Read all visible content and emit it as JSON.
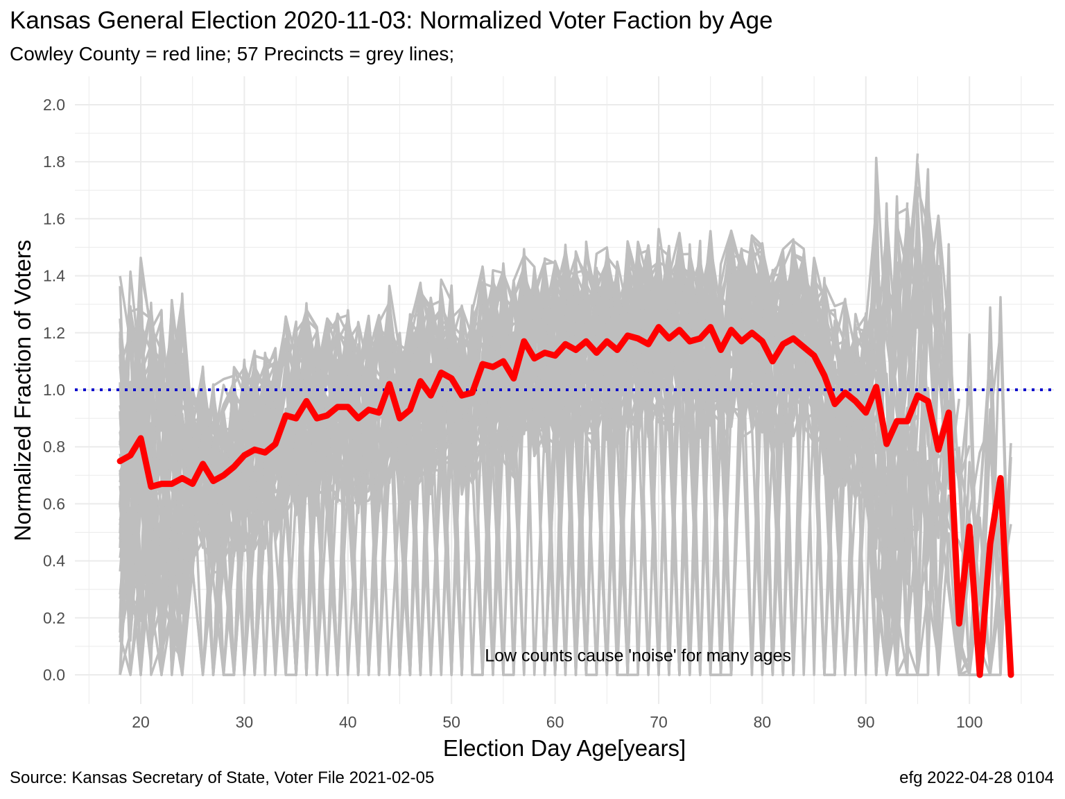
{
  "chart_data": {
    "type": "line",
    "title": "Kansas General Election 2020-11-03:  Normalized Voter Faction by Age",
    "subtitle": "Cowley County = red line; 57 Precincts = grey lines;",
    "xlabel": "Election Day Age[years]",
    "ylabel": "Normalized Fraction of Voters",
    "xlim": [
      15,
      107
    ],
    "ylim": [
      -0.1,
      2.1
    ],
    "x_ticks": [
      20,
      30,
      40,
      50,
      60,
      70,
      80,
      90,
      100
    ],
    "y_ticks": [
      "0.0",
      "0.2",
      "0.4",
      "0.6",
      "0.8",
      "1.0",
      "1.2",
      "1.4",
      "1.6",
      "1.8",
      "2.0"
    ],
    "grid": true,
    "reference_line": {
      "y": 1.0,
      "style": "dotted",
      "color": "#0000cc"
    },
    "annotation": {
      "text": "Low counts cause 'noise' for many ages",
      "x": 68,
      "y": 0.06
    },
    "colors": {
      "county": "#ff0000",
      "precincts": "#bebebe",
      "reference": "#0000cc",
      "grid": "#ebebeb"
    },
    "precinct_line_count": 57,
    "series": [
      {
        "name": "Cowley County",
        "x": [
          18,
          19,
          20,
          21,
          22,
          23,
          24,
          25,
          26,
          27,
          28,
          29,
          30,
          31,
          32,
          33,
          34,
          35,
          36,
          37,
          38,
          39,
          40,
          41,
          42,
          43,
          44,
          45,
          46,
          47,
          48,
          49,
          50,
          51,
          52,
          53,
          54,
          55,
          56,
          57,
          58,
          59,
          60,
          61,
          62,
          63,
          64,
          65,
          66,
          67,
          68,
          69,
          70,
          71,
          72,
          73,
          74,
          75,
          76,
          77,
          78,
          79,
          80,
          81,
          82,
          83,
          84,
          85,
          86,
          87,
          88,
          89,
          90,
          91,
          92,
          93,
          94,
          95,
          96,
          97,
          98,
          99,
          100,
          101,
          102,
          103,
          104
        ],
        "values": [
          0.75,
          0.77,
          0.83,
          0.66,
          0.67,
          0.67,
          0.69,
          0.67,
          0.74,
          0.68,
          0.7,
          0.73,
          0.77,
          0.79,
          0.78,
          0.81,
          0.91,
          0.9,
          0.96,
          0.9,
          0.91,
          0.94,
          0.94,
          0.9,
          0.93,
          0.92,
          1.02,
          0.9,
          0.93,
          1.03,
          0.98,
          1.06,
          1.04,
          0.98,
          0.99,
          1.09,
          1.08,
          1.1,
          1.04,
          1.17,
          1.11,
          1.13,
          1.12,
          1.16,
          1.14,
          1.17,
          1.13,
          1.17,
          1.14,
          1.19,
          1.18,
          1.16,
          1.22,
          1.18,
          1.21,
          1.17,
          1.18,
          1.22,
          1.14,
          1.21,
          1.17,
          1.2,
          1.17,
          1.1,
          1.16,
          1.18,
          1.15,
          1.12,
          1.05,
          0.95,
          0.99,
          0.96,
          0.92,
          1.01,
          0.81,
          0.89,
          0.89,
          0.98,
          0.96,
          0.79,
          0.92,
          0.18,
          0.52,
          0.0,
          0.46,
          0.69,
          0.0
        ]
      }
    ]
  },
  "captions": {
    "source": "Source:  Kansas Secretary of State, Voter File  2021-02-05",
    "credit": "efg 2022-04-28 0104"
  }
}
